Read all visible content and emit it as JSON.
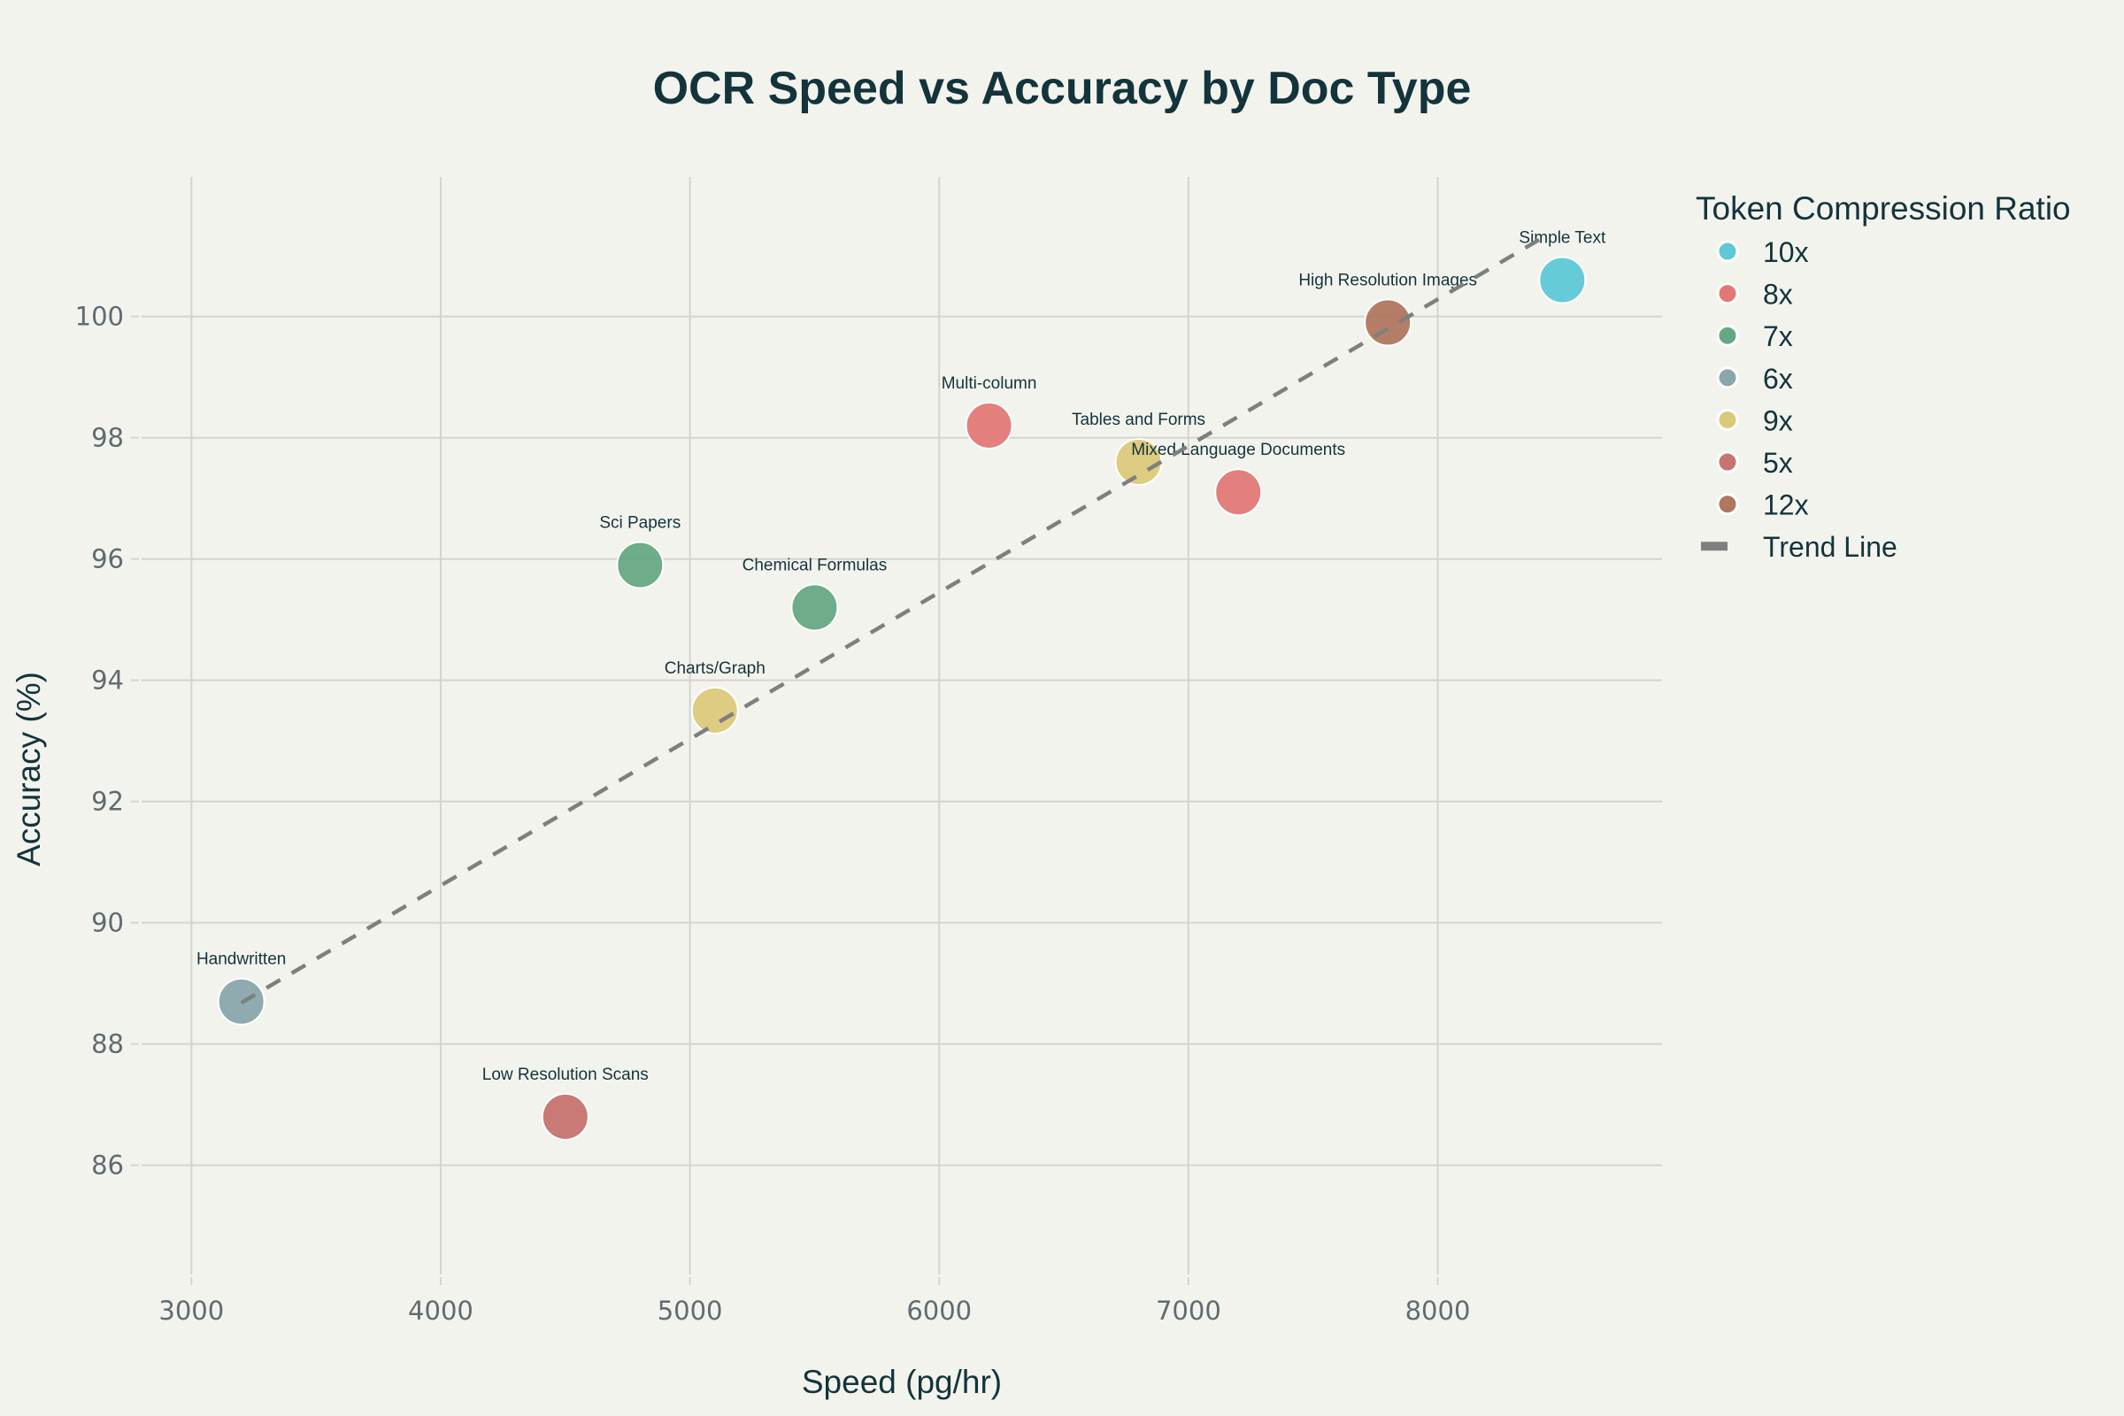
{
  "chart_data": {
    "type": "scatter",
    "title": "OCR Speed vs Accuracy by Doc Type",
    "xlabel": "Speed (pg/hr)",
    "ylabel": "Accuracy (%)",
    "xlim": [
      2800,
      8900
    ],
    "ylim": [
      84.2,
      102.3
    ],
    "x_ticks": [
      3000,
      4000,
      5000,
      6000,
      7000,
      8000
    ],
    "y_ticks": [
      86,
      88,
      90,
      92,
      94,
      96,
      98,
      100
    ],
    "grid": true,
    "legend": {
      "title": "Token Compression Ratio",
      "placement": "top-right-outside",
      "entries": [
        {
          "label": "10x",
          "color": "#5EC8D6",
          "type": "marker"
        },
        {
          "label": "8x",
          "color": "#E27876",
          "type": "marker"
        },
        {
          "label": "7x",
          "color": "#67A884",
          "type": "marker"
        },
        {
          "label": "6x",
          "color": "#8AA6AB",
          "type": "marker"
        },
        {
          "label": "9x",
          "color": "#DBC97A",
          "type": "marker"
        },
        {
          "label": "5x",
          "color": "#C7736F",
          "type": "marker"
        },
        {
          "label": "12x",
          "color": "#B07660",
          "type": "marker"
        },
        {
          "label": "Trend Line",
          "color": "#7F7F7F",
          "type": "line"
        }
      ]
    },
    "points": [
      {
        "label": "Simple Text",
        "x": 8500,
        "y": 100.6,
        "ratio": "10x"
      },
      {
        "label": "High Resolution Images",
        "x": 7800,
        "y": 99.9,
        "ratio": "12x"
      },
      {
        "label": "Multi-column",
        "x": 6200,
        "y": 98.2,
        "ratio": "8x"
      },
      {
        "label": "Tables and Forms",
        "x": 6800,
        "y": 97.6,
        "ratio": "9x"
      },
      {
        "label": "Mixed Language Documents",
        "x": 7200,
        "y": 97.1,
        "ratio": "8x"
      },
      {
        "label": "Sci Papers",
        "x": 4800,
        "y": 95.9,
        "ratio": "7x"
      },
      {
        "label": "Chemical Formulas",
        "x": 5500,
        "y": 95.2,
        "ratio": "7x"
      },
      {
        "label": "Charts/Graph",
        "x": 5100,
        "y": 93.5,
        "ratio": "9x"
      },
      {
        "label": "Handwritten",
        "x": 3200,
        "y": 88.7,
        "ratio": "6x"
      },
      {
        "label": "Low Resolution Scans",
        "x": 4500,
        "y": 86.8,
        "ratio": "5x"
      }
    ],
    "trend_line": {
      "name": "Trend Line",
      "x": [
        3200,
        8450
      ],
      "y": [
        88.68,
        101.37
      ],
      "style": "dashed",
      "color": "#7F7F7F"
    }
  }
}
